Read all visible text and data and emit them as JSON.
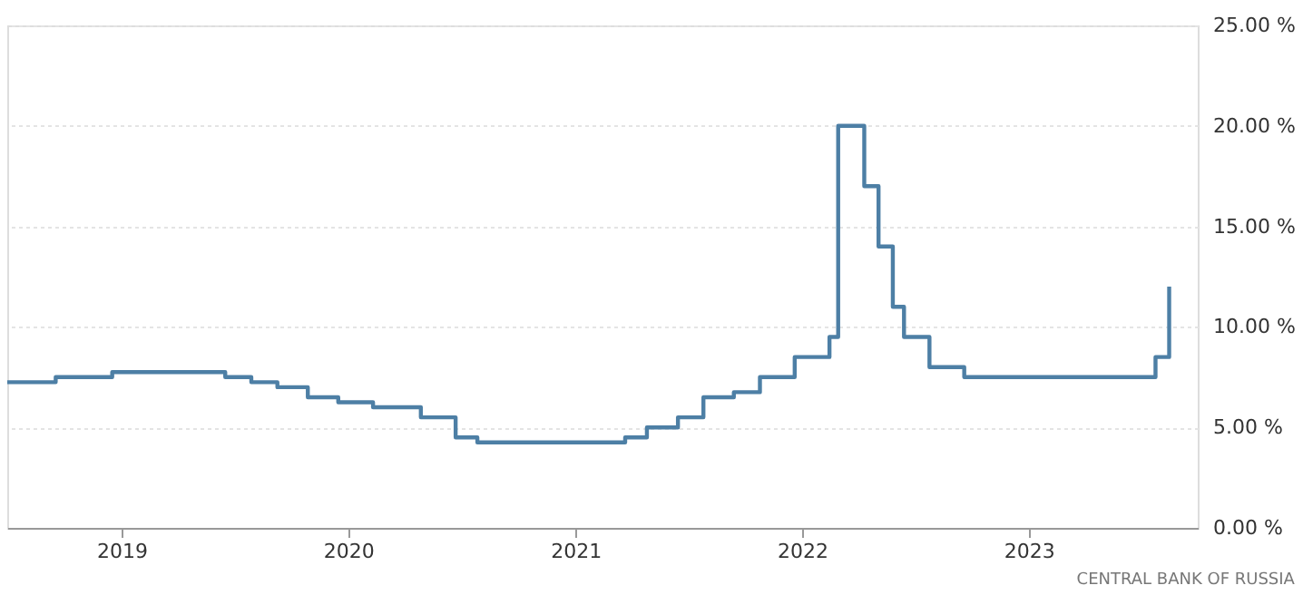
{
  "chart_data": {
    "type": "step",
    "x": [
      "2018-07-01",
      "2018-09-17",
      "2018-12-17",
      "2019-06-17",
      "2019-07-29",
      "2019-09-09",
      "2019-10-28",
      "2019-12-16",
      "2020-02-10",
      "2020-04-27",
      "2020-06-22",
      "2020-07-27",
      "2021-03-22",
      "2021-04-26",
      "2021-06-15",
      "2021-07-26",
      "2021-09-13",
      "2021-10-25",
      "2021-12-20",
      "2022-02-14",
      "2022-02-28",
      "2022-04-11",
      "2022-05-04",
      "2022-05-27",
      "2022-06-14",
      "2022-07-25",
      "2022-09-19",
      "2023-07-24",
      "2023-08-15"
    ],
    "series": [
      {
        "color": "#4d7fa5",
        "values": [
          7.25,
          7.5,
          7.75,
          7.5,
          7.25,
          7.0,
          6.5,
          6.25,
          6.0,
          5.5,
          4.5,
          4.25,
          4.5,
          5.0,
          5.5,
          6.5,
          6.75,
          7.5,
          8.5,
          9.5,
          20,
          17,
          14,
          11,
          9.5,
          8.0,
          7.5,
          8.5,
          12
        ]
      }
    ],
    "xlim": [
      "2018-07-01",
      "2023-09-30"
    ],
    "xticks": [
      "2019",
      "2020",
      "2021",
      "2022",
      "2023"
    ],
    "ylim": [
      0,
      25
    ],
    "yticks": [
      {
        "value": 0,
        "label": "0.00 %"
      },
      {
        "value": 5,
        "label": "5.00 %"
      },
      {
        "value": 10,
        "label": "10.00 %"
      },
      {
        "value": 15,
        "label": "15.00 %"
      },
      {
        "value": 20,
        "label": "20.00 %"
      },
      {
        "value": 25,
        "label": "25.00 %"
      }
    ],
    "grid": "y",
    "line_style": "solid",
    "annotations": [
      "CENTRAL BANK OF RUSSIA"
    ]
  }
}
